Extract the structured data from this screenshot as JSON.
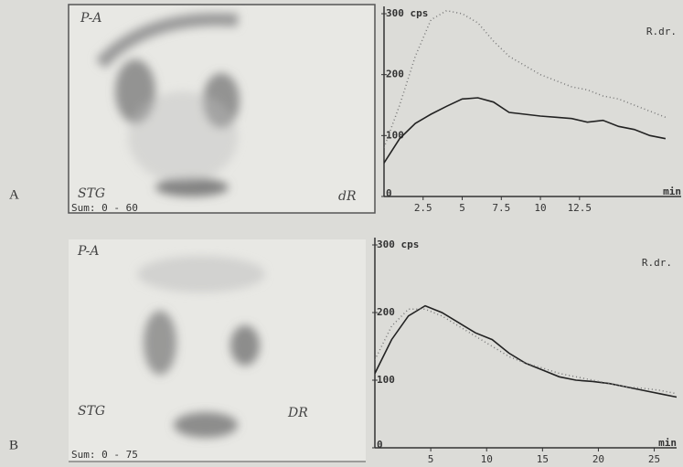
{
  "panels": [
    {
      "label": "A",
      "image": {
        "view": "P-A",
        "patient": "STG",
        "sum": "Sum: 0 - 60",
        "side": "dR"
      }
    },
    {
      "label": "B",
      "image": {
        "view": "P-A",
        "patient": "STG",
        "sum": "Sum: 0 - 75",
        "side": "DR"
      }
    }
  ],
  "chart_data": [
    {
      "type": "line",
      "x_label": "min",
      "annotation": "R.dr.",
      "xlim": [
        0,
        19
      ],
      "xticks": [
        2.5,
        5,
        7.5,
        10,
        12.5
      ],
      "ylim": [
        0,
        300
      ],
      "yticks": [
        0,
        100,
        200,
        {
          "value": 300,
          "label": "300 cps"
        }
      ],
      "x": [
        0,
        1,
        2,
        3,
        4,
        5,
        6,
        7,
        8,
        9,
        10,
        11,
        12,
        13,
        14,
        15,
        16,
        17,
        18
      ],
      "series": [
        {
          "color": "#222222",
          "style": "solid",
          "values": [
            55,
            95,
            120,
            135,
            148,
            160,
            162,
            155,
            138,
            135,
            132,
            130,
            128,
            122,
            125,
            115,
            110,
            100,
            95
          ]
        },
        {
          "color": "#777777",
          "style": "dotted",
          "values": [
            80,
            150,
            230,
            290,
            305,
            300,
            285,
            255,
            230,
            215,
            200,
            190,
            180,
            175,
            165,
            160,
            150,
            140,
            130
          ]
        }
      ]
    },
    {
      "type": "line",
      "x_label": "min",
      "annotation": "R.dr.",
      "xlim": [
        0,
        27
      ],
      "xticks": [
        5,
        10,
        15,
        20,
        25
      ],
      "ylim": [
        0,
        300
      ],
      "yticks": [
        0,
        100,
        200,
        {
          "value": 300,
          "label": "300 cps"
        }
      ],
      "x": [
        0,
        1.5,
        3,
        4.5,
        6,
        7.5,
        9,
        10.5,
        12,
        13.5,
        15,
        16.5,
        18,
        19.5,
        21,
        22.5,
        24,
        25.5,
        27
      ],
      "series": [
        {
          "color": "#222222",
          "style": "solid",
          "values": [
            110,
            160,
            195,
            210,
            200,
            185,
            170,
            160,
            140,
            125,
            115,
            105,
            100,
            98,
            95,
            90,
            85,
            80,
            75
          ]
        },
        {
          "color": "#777777",
          "style": "dotted",
          "values": [
            130,
            180,
            205,
            205,
            195,
            180,
            165,
            150,
            135,
            125,
            118,
            110,
            105,
            100,
            95,
            90,
            88,
            85,
            80
          ]
        }
      ]
    }
  ]
}
